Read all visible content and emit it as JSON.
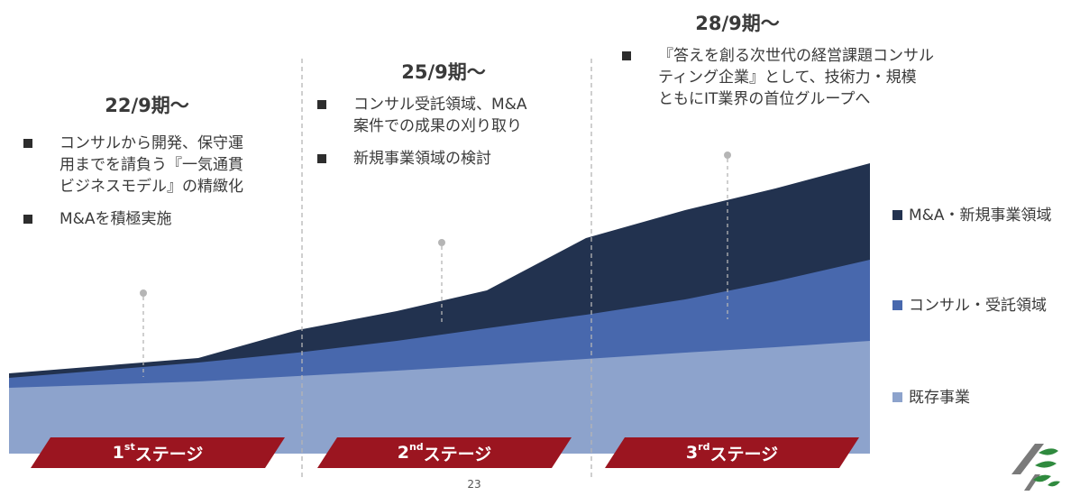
{
  "periods": [
    {
      "label": "22/9期〜",
      "bullets": [
        "コンサルから開発、保守運\n用までを請負う『一気通貫\nビジネスモデル』の精緻化",
        "M&Aを積極実施"
      ]
    },
    {
      "label": "25/9期〜",
      "bullets": [
        "コンサル受託領域、M&A\n案件での成果の刈り取り",
        "新規事業領域の検討"
      ]
    },
    {
      "label": "28/9期〜",
      "bullets": [
        "『答えを創る次世代の経営課題コンサル\nティング企業』として、技術力・規模\nともにIT業界の首位グループへ"
      ]
    }
  ],
  "legend": [
    {
      "label": "M&A・新規事業領域",
      "color": "#22324f"
    },
    {
      "label": "コンサル・受託領域",
      "color": "#4868ad"
    },
    {
      "label": "既存事業",
      "color": "#8da3cc"
    }
  ],
  "stages": [
    {
      "num": "1",
      "sup": "st",
      "suffix": " ステージ"
    },
    {
      "num": "2",
      "sup": "nd",
      "suffix": " ステージ"
    },
    {
      "num": "3",
      "sup": "rd",
      "suffix": " ステージ"
    }
  ],
  "page_number": "23",
  "colors": {
    "stage_banner": "#9b1520",
    "divider": "#b5b5b5",
    "logo_green": "#2f8a3e",
    "logo_gray": "#7a7a7a"
  }
}
